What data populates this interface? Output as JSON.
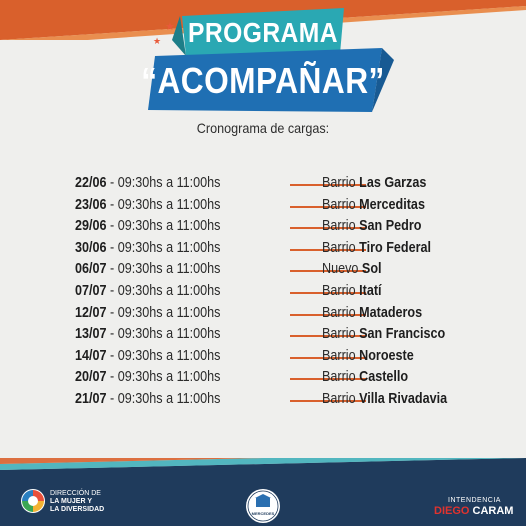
{
  "header": {
    "title_line1": "PROGRAMA",
    "title_line2": "“ACOMPAÑAR”",
    "subtitle": "Cronograma de cargas:"
  },
  "schedule": [
    {
      "date": "22/06",
      "time": " - 09:30hs a 11:00hs",
      "place_prefix": "Barrio ",
      "place_name": "Las Garzas"
    },
    {
      "date": "23/06",
      "time": " - 09:30hs a 11:00hs",
      "place_prefix": "Barrio ",
      "place_name": "Merceditas"
    },
    {
      "date": "29/06",
      "time": " - 09:30hs a 11:00hs",
      "place_prefix": "Barrio ",
      "place_name": "San Pedro"
    },
    {
      "date": "30/06",
      "time": " - 09:30hs a 11:00hs",
      "place_prefix": "Barrio ",
      "place_name": "Tiro Federal"
    },
    {
      "date": "06/07",
      "time": " - 09:30hs a 11:00hs",
      "place_prefix": "Nuevo ",
      "place_name": "Sol"
    },
    {
      "date": "07/07",
      "time": " - 09:30hs a 11:00hs",
      "place_prefix": "Barrio ",
      "place_name": "Itatí"
    },
    {
      "date": "12/07",
      "time": " - 09:30hs a 11:00hs",
      "place_prefix": "Barrio ",
      "place_name": "Mataderos"
    },
    {
      "date": "13/07",
      "time": " - 09:30hs a 11:00hs",
      "place_prefix": "Barrio ",
      "place_name": "San Francisco"
    },
    {
      "date": "14/07",
      "time": " - 09:30hs a 11:00hs",
      "place_prefix": "Barrio ",
      "place_name": "Noroeste"
    },
    {
      "date": "20/07",
      "time": " - 09:30hs a 11:00hs",
      "place_prefix": "Barrio ",
      "place_name": "Castello"
    },
    {
      "date": "21/07",
      "time": " - 09:30hs a 11:00hs",
      "place_prefix": "Barrio ",
      "place_name": "Villa Rivadavia"
    }
  ],
  "footer": {
    "left_logo": {
      "line1": "DIRECCIÓN DE",
      "line2": "LA MUJER Y",
      "line3": "LA DIVERSIDAD"
    },
    "center_logo_text": "MERCEDES",
    "right_logo": {
      "small": "INTENDENCIA",
      "name_first": "DIEGO",
      "name_last": "CARAM"
    }
  },
  "colors": {
    "orange": "#d9602c",
    "teal": "#2aa8b3",
    "blue": "#1f6fb3",
    "navy": "#1f3b5c",
    "background": "#efefed"
  }
}
